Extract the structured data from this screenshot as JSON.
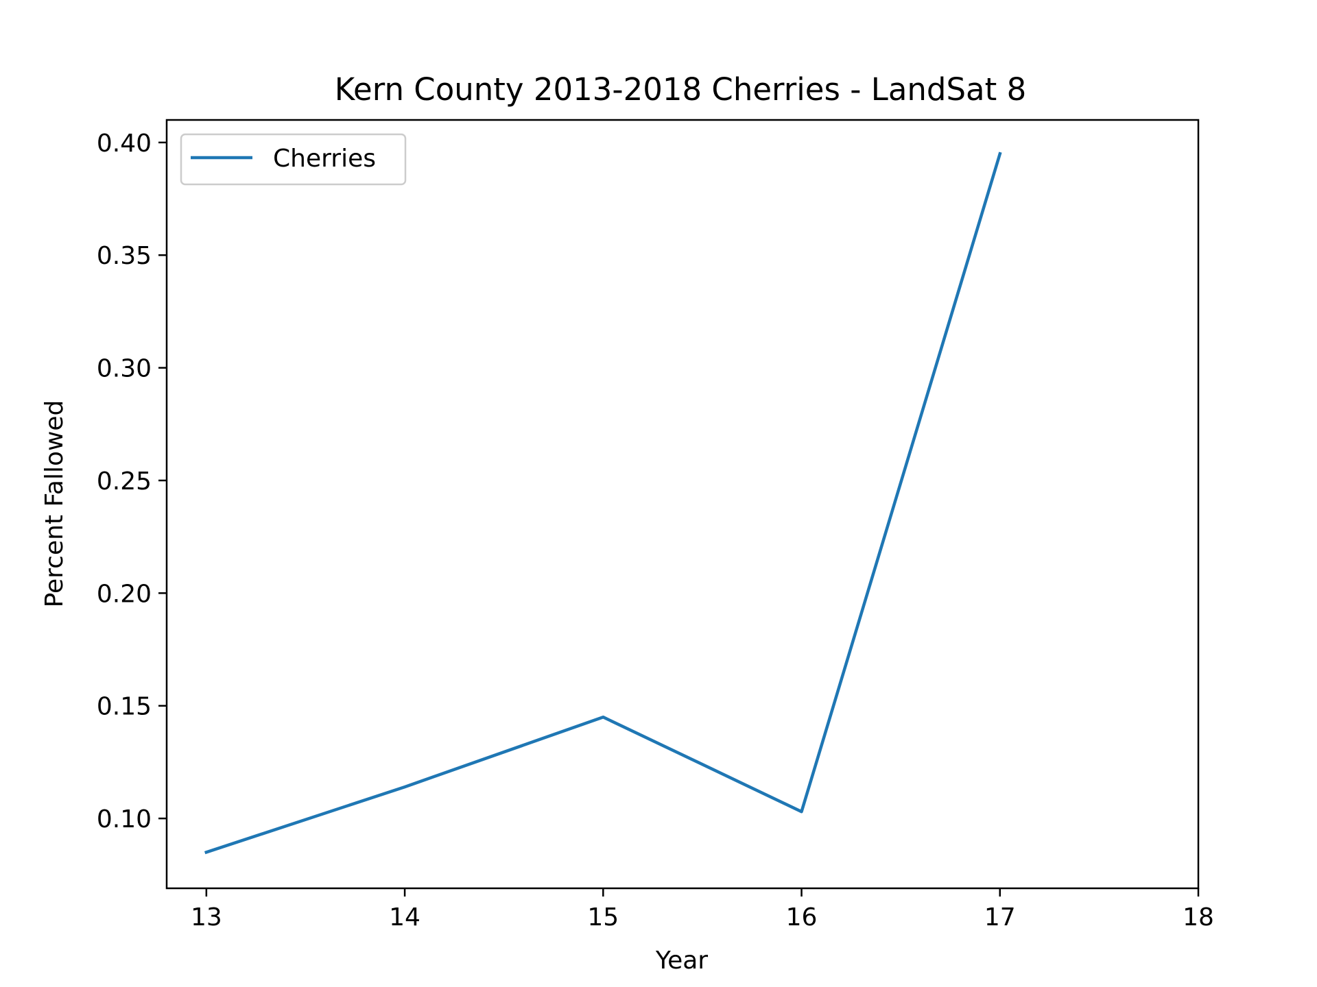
{
  "chart_data": {
    "type": "line",
    "title": "Kern County 2013-2018 Cherries - LandSat 8",
    "xlabel": "Year",
    "ylabel": "Percent Fallowed",
    "x": [
      13,
      14,
      15,
      16,
      17
    ],
    "series": [
      {
        "name": "Cherries",
        "color": "#1f77b4",
        "values": [
          0.085,
          0.114,
          0.145,
          0.103,
          0.395
        ]
      }
    ],
    "xlim": [
      12.8,
      18
    ],
    "ylim": [
      0.069,
      0.41
    ],
    "xticks": [
      13,
      14,
      15,
      16,
      17,
      18
    ],
    "xtick_labels": [
      "13",
      "14",
      "15",
      "16",
      "17",
      "18"
    ],
    "yticks": [
      0.1,
      0.15,
      0.2,
      0.25,
      0.3,
      0.35,
      0.4
    ],
    "ytick_labels": [
      "0.10",
      "0.15",
      "0.20",
      "0.25",
      "0.30",
      "0.35",
      "0.40"
    ],
    "grid": false,
    "legend_position": "top-left"
  }
}
